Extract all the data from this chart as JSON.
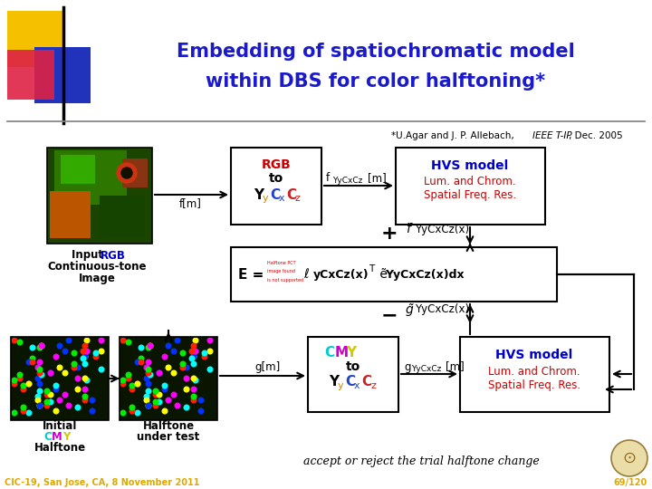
{
  "title_line1": "Embedding of spatiochromatic model",
  "title_line2": "within DBS for color halftoning*",
  "title_color": "#1a1acc",
  "bg_color": "#ffffff",
  "footer_left": "CIC-19, San Jose, CA, 8 November 2011",
  "footer_right": "69/120",
  "footer_color": "#ddaa00",
  "hvs_title_color": "#0000cc",
  "hvs_body_color": "#cc0000",
  "cmy_c_color": "#00cccc",
  "cmy_m_color": "#cc00cc",
  "cmy_y_color": "#cccc00",
  "rgb_color": "#cc0000",
  "accept_text": "accept or reject the trial halftone change",
  "sq_yellow": "#f5c000",
  "sq_blue": "#2233bb",
  "sq_red": "#dd2244",
  "frog_colors": [
    "#1a4400",
    "#2d7700",
    "#bb5500",
    "#144400",
    "#883311",
    "#33aa00"
  ],
  "dot_colors": [
    "#ff2200",
    "#00ee00",
    "#0033ff",
    "#ffff00",
    "#00ffff",
    "#ff00ff"
  ]
}
